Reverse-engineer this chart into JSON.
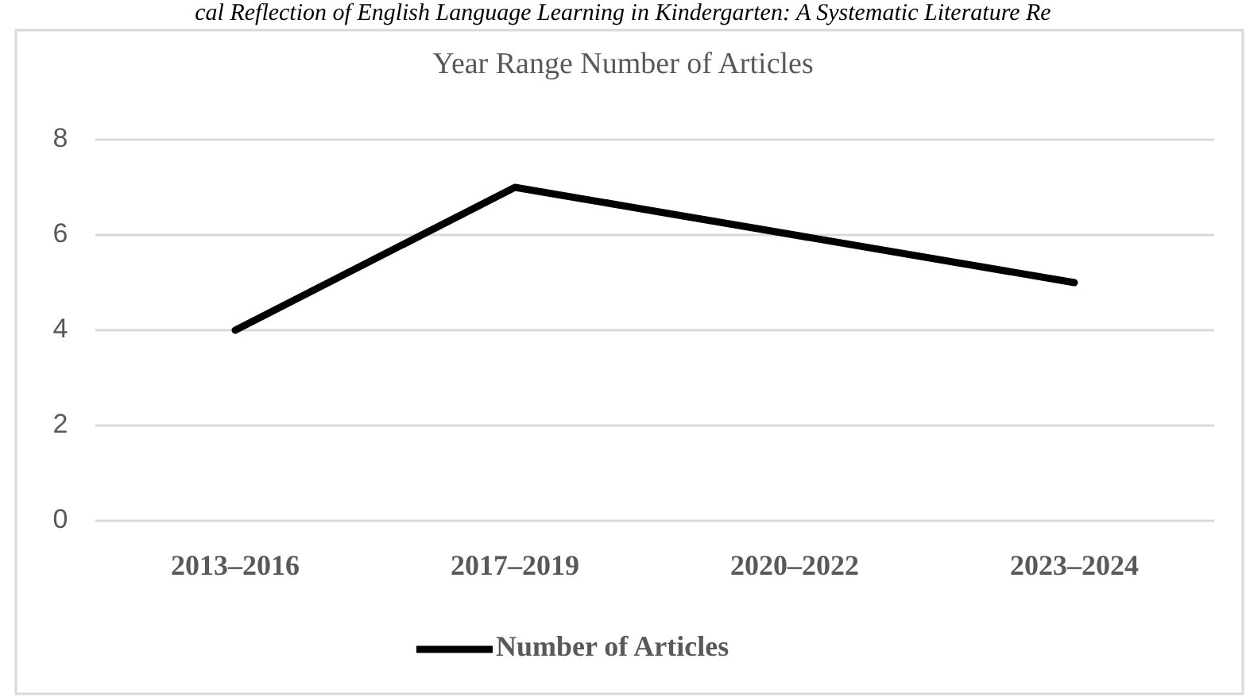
{
  "chart_data": {
    "type": "line",
    "title": "Year Range Number of Articles",
    "annotations": [
      "cal Reflection of English Language Learning in Kindergarten: A Systematic Literature Re"
    ],
    "categories": [
      "2013–2016",
      "2017–2019",
      "2020–2022",
      "2023–2024"
    ],
    "series": [
      {
        "name": "Number of Articles",
        "color": "#000000",
        "values": [
          4,
          7,
          6,
          5
        ]
      }
    ],
    "ylim": [
      0,
      8
    ],
    "yticks": [
      0,
      2,
      4,
      6,
      8
    ],
    "grid": "y",
    "legend": "bottom",
    "marker": "none",
    "line_style": "solid"
  }
}
